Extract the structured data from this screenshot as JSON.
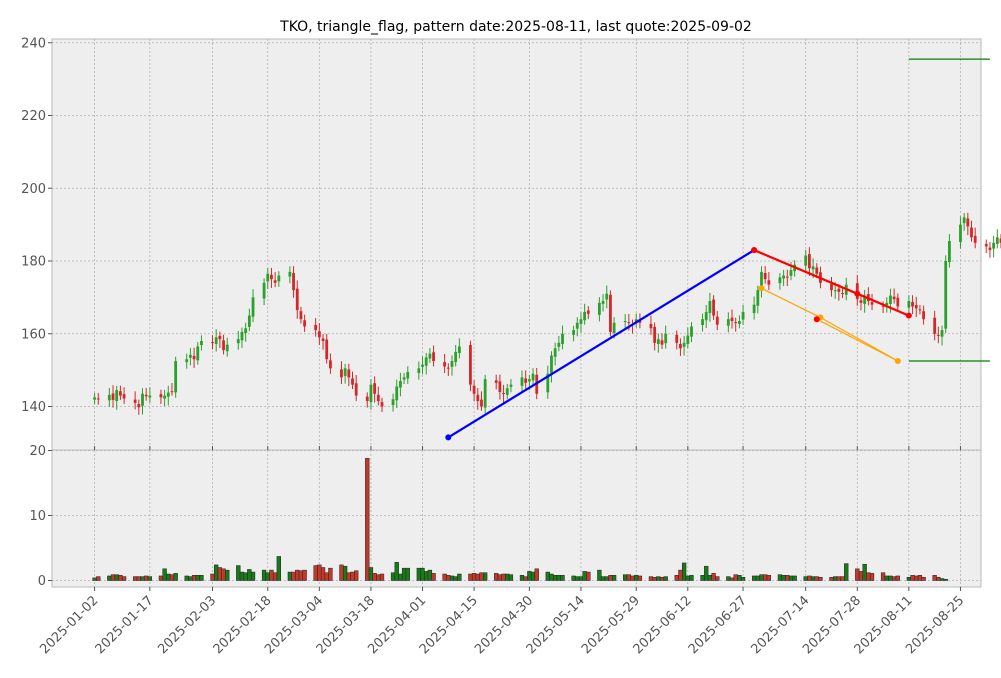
{
  "chart_data": [
    {
      "type": "candlestick",
      "title": "TKO, triangle_flag, pattern date:2025-08-11, last quote:2025-09-02",
      "xlabel": "",
      "ylabel": "",
      "ylim": [
        127,
        241
      ],
      "yticks": [
        140,
        160,
        180,
        200,
        220,
        240
      ],
      "grid": true,
      "colors": {
        "up": "#2ca02c",
        "down": "#d62728",
        "support": "#0000ff",
        "resistance": "#ff0000",
        "channel": "#ffa500",
        "target": "#008000"
      },
      "x_start_date": "2025-01-02",
      "xticks": [
        "2025-01-02",
        "2025-01-17",
        "2025-02-03",
        "2025-02-18",
        "2025-03-04",
        "2025-03-18",
        "2025-04-01",
        "2025-04-15",
        "2025-04-30",
        "2025-05-14",
        "2025-05-29",
        "2025-06-12",
        "2025-06-27",
        "2025-07-14",
        "2025-07-28",
        "2025-08-11",
        "2025-08-25"
      ],
      "close_series": [
        142.5,
        142.0,
        143.2,
        141.8,
        144.5,
        143.0,
        142.2,
        141.0,
        139.8,
        143.5,
        142.8,
        143.0,
        142.5,
        143.0,
        143.8,
        144.2,
        152.5,
        153.0,
        154.2,
        153.0,
        156.5,
        158.0,
        157.5,
        159.0,
        158.5,
        155.5,
        157.0,
        158.5,
        160.5,
        161.5,
        165.0,
        170.0,
        174.0,
        176.5,
        175.0,
        174.0,
        176.0,
        177.0,
        172.0,
        166.5,
        164.0,
        162.0,
        161.0,
        159.0,
        158.0,
        153.0,
        150.5,
        148.0,
        150.5,
        148.0,
        146.0,
        143.0,
        141.5,
        146.0,
        143.5,
        141.5,
        140.0,
        142.0,
        145.5,
        147.0,
        148.0,
        149.5,
        150.5,
        151.5,
        153.5,
        154.5,
        152.5,
        151.0,
        150.5,
        152.5,
        155.0,
        156.5,
        146.0,
        143.5,
        141.5,
        140.0,
        147.5,
        146.5,
        144.0,
        143.5,
        145.0,
        146.0,
        148.0,
        146.5,
        147.5,
        149.0,
        143.5,
        149.0,
        154.0,
        156.0,
        157.5,
        160.0,
        161.0,
        163.0,
        164.0,
        166.0,
        165.5,
        168.5,
        169.0,
        171.0,
        160.5,
        163.0,
        163.5,
        163.0,
        162.5,
        164.0,
        163.0,
        161.5,
        157.5,
        158.5,
        157.0,
        160.0,
        157.5,
        156.0,
        157.5,
        159.5,
        162.0,
        164.0,
        166.0,
        169.0,
        165.0,
        162.5,
        164.0,
        163.5,
        163.0,
        163.5,
        166.0,
        168.0,
        172.0,
        177.0,
        175.0,
        173.5,
        175.5,
        176.0,
        175.5,
        177.5,
        179.0,
        181.5,
        178.0,
        178.5,
        176.5,
        174.0,
        172.0,
        172.0,
        171.5,
        171.0,
        173.5,
        169.5,
        168.5,
        170.5,
        169.0,
        168.0,
        167.5,
        168.5,
        170.5,
        169.5,
        167.5,
        169.0,
        167.5,
        167.0,
        166.5,
        164.0,
        160.0,
        159.5,
        161.0,
        180.0,
        185.5,
        190.0,
        192.0,
        189.5,
        186.5,
        185.0,
        184.0,
        183.0,
        185.0,
        186.5,
        185.0,
        184.5,
        186.5,
        188.5,
        189.5,
        187.0
      ],
      "volume_series": [
        0.4,
        0.6,
        0.7,
        0.9,
        0.9,
        0.8,
        0.6,
        0.6,
        0.6,
        0.6,
        0.7,
        0.6,
        0.7,
        1.8,
        1.0,
        0.9,
        1.1,
        0.7,
        0.6,
        0.8,
        0.8,
        0.8,
        1.0,
        2.4,
        2.0,
        1.8,
        1.6,
        2.3,
        1.3,
        1.2,
        1.7,
        1.3,
        1.6,
        1.2,
        1.6,
        1.2,
        3.7,
        1.3,
        1.3,
        1.6,
        1.5,
        1.6,
        2.3,
        2.4,
        2.0,
        1.2,
        1.9,
        2.4,
        2.2,
        1.2,
        1.3,
        1.5,
        18.8,
        2.0,
        1.1,
        0.9,
        1.0,
        1.2,
        2.8,
        1.0,
        1.9,
        1.9,
        1.9,
        1.9,
        1.4,
        1.6,
        1.1,
        1.0,
        0.8,
        0.7,
        0.6,
        1.0,
        1.0,
        1.1,
        1.0,
        1.2,
        1.2,
        1.1,
        0.9,
        1.0,
        1.0,
        0.9,
        0.8,
        0.6,
        1.4,
        1.3,
        1.8,
        1.3,
        1.0,
        0.8,
        0.8,
        0.8,
        0.7,
        0.6,
        0.6,
        1.4,
        1.3,
        1.6,
        0.6,
        0.6,
        0.8,
        0.8,
        0.9,
        0.9,
        0.7,
        0.8,
        0.7,
        0.6,
        0.5,
        0.6,
        0.5,
        0.6,
        0.8,
        1.6,
        2.7,
        0.7,
        0.8,
        0.8,
        2.2,
        0.8,
        1.1,
        0.6,
        0.6,
        0.4,
        0.9,
        0.8,
        0.5,
        0.7,
        0.7,
        0.9,
        0.9,
        0.8,
        0.9,
        0.8,
        0.8,
        0.7,
        0.7,
        0.6,
        0.7,
        0.6,
        0.6,
        0.5,
        0.5,
        0.6,
        0.6,
        0.6,
        2.6,
        1.8,
        1.4,
        2.5,
        1.2,
        1.1,
        1.2,
        0.7,
        0.7,
        0.6,
        0.7,
        0.5,
        0.8,
        0.7,
        0.8,
        0.5,
        0.8,
        0.5,
        0.3,
        0.2
      ],
      "vol_ylim": [
        0,
        20
      ],
      "vol_yticks": [
        0,
        10,
        20
      ],
      "annotations": {
        "support_line": [
          [
            "2025-04-08",
            131.5
          ],
          [
            "2025-06-30",
            183.0
          ]
        ],
        "resistance_line": [
          [
            "2025-06-30",
            183.0
          ],
          [
            "2025-07-28",
            171.0
          ],
          [
            "2025-08-11",
            165.0
          ]
        ],
        "channel_line": [
          [
            "2025-07-02",
            172.5
          ],
          [
            "2025-07-18",
            164.5
          ],
          [
            "2025-08-08",
            152.5
          ]
        ],
        "channel_line_2": [
          [
            "2025-07-17",
            164.0
          ],
          [
            "2025-08-08",
            152.5
          ]
        ],
        "target_upper": [
          [
            "2025-08-11",
            235.5
          ],
          [
            "2025-09-02",
            235.5
          ]
        ],
        "target_lower": [
          [
            "2025-08-11",
            152.5
          ],
          [
            "2025-09-02",
            152.5
          ]
        ]
      }
    }
  ]
}
